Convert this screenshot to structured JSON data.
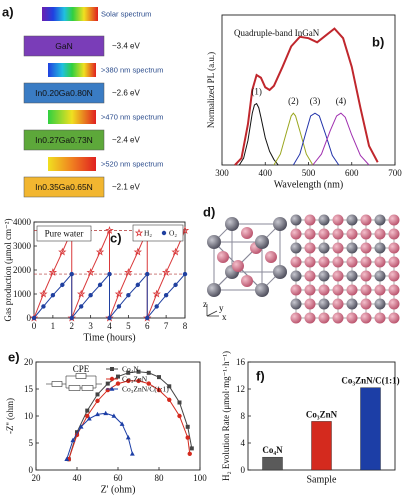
{
  "schematic": {
    "panel_label": "a)",
    "spectra": [
      "Solar spectrum",
      ">380 nm spectrum",
      ">470 nm spectrum",
      ">520 nm spectrum"
    ],
    "layers": [
      {
        "name": "GaN",
        "energy": "~3.4 eV",
        "color": "#7a3db8",
        "text_color": "#ffffff"
      },
      {
        "name": "In0.20Ga0.80N",
        "energy": "~2.6 eV",
        "color": "#3a7cc4",
        "text_color": "#111111"
      },
      {
        "name": "In0.27Ga0.73N",
        "energy": "~2.4 eV",
        "color": "#5da83a",
        "text_color": "#111111"
      },
      {
        "name": "In0.35Ga0.65N",
        "energy": "~2.1 eV",
        "color": "#f2b630",
        "text_color": "#111111"
      }
    ]
  },
  "structure": {
    "panel_label": "d)",
    "axes": [
      "z",
      "y",
      "x"
    ]
  },
  "chart_data": [
    {
      "type": "line",
      "panel_label": "b)",
      "annotation": "Quadruple-band InGaN",
      "annotation_color": "#c0272d",
      "x_label": "Wavelength (nm)",
      "y_label": "Normalized PL (a.u.)",
      "xlim": [
        300,
        700
      ],
      "xticks": [
        300,
        400,
        500,
        600,
        700
      ],
      "ylim": [
        0,
        1.1
      ],
      "series": [
        {
          "color": "#c0272d",
          "line_width": 2,
          "x": [
            330,
            345,
            360,
            370,
            380,
            390,
            400,
            410,
            420,
            440,
            460,
            480,
            500,
            520,
            540,
            560,
            580,
            600,
            620,
            640,
            660
          ],
          "values": [
            0,
            0.05,
            0.3,
            0.55,
            0.66,
            0.64,
            0.57,
            0.55,
            0.58,
            0.72,
            0.87,
            0.94,
            0.93,
            0.9,
            0.95,
            1.0,
            0.93,
            0.72,
            0.42,
            0.14,
            0.02
          ]
        },
        {
          "name": "(1)",
          "color": "#111111",
          "x": [
            340,
            350,
            360,
            370,
            375,
            380,
            385,
            390,
            400,
            410,
            420,
            430
          ],
          "values": [
            0,
            0.05,
            0.18,
            0.38,
            0.44,
            0.45,
            0.42,
            0.35,
            0.2,
            0.1,
            0.04,
            0
          ]
        },
        {
          "name": "(2)",
          "color": "#9aa61e",
          "x": [
            420,
            435,
            450,
            460,
            465,
            470,
            480,
            495,
            510
          ],
          "values": [
            0,
            0.08,
            0.25,
            0.36,
            0.38,
            0.36,
            0.25,
            0.08,
            0
          ]
        },
        {
          "name": "(3)",
          "color": "#2233aa",
          "x": [
            465,
            480,
            495,
            505,
            515,
            525,
            540,
            555,
            570
          ],
          "values": [
            0,
            0.08,
            0.25,
            0.36,
            0.38,
            0.36,
            0.22,
            0.07,
            0
          ]
        },
        {
          "name": "(4)",
          "color": "#a030b0",
          "x": [
            510,
            530,
            550,
            565,
            575,
            585,
            600,
            620,
            640
          ],
          "values": [
            0,
            0.08,
            0.25,
            0.36,
            0.38,
            0.35,
            0.22,
            0.07,
            0
          ]
        }
      ]
    },
    {
      "type": "line",
      "panel_label": "c)",
      "annotation": "Pure water",
      "x_label": "Time (hours)",
      "y_label": "Gas production (μmol cm⁻²)",
      "xlim": [
        0,
        8
      ],
      "xticks": [
        0,
        1,
        2,
        3,
        4,
        5,
        6,
        7,
        8
      ],
      "ylim": [
        0,
        4000
      ],
      "yticks": [
        0,
        1000,
        2000,
        3000,
        4000
      ],
      "reference_lines": [
        3650,
        1830
      ],
      "legend": "upper right",
      "series": [
        {
          "name": "H₂",
          "color": "#d9383a",
          "marker": "star",
          "x": [
            0,
            0.5,
            1,
            1.5,
            2,
            2,
            2.5,
            3,
            3.5,
            4,
            4,
            4.5,
            5,
            5.5,
            6,
            6,
            6.5,
            7,
            7.5,
            8
          ],
          "values": [
            0,
            1000,
            1900,
            2750,
            3650,
            0,
            1000,
            1900,
            2750,
            3650,
            0,
            1000,
            1900,
            2750,
            3650,
            0,
            1000,
            1900,
            2750,
            3650
          ]
        },
        {
          "name": "O₂",
          "color": "#2040a0",
          "marker": "circle",
          "x": [
            0,
            0.5,
            1,
            1.5,
            2,
            2,
            2.5,
            3,
            3.5,
            4,
            4,
            4.5,
            5,
            5.5,
            6,
            6,
            6.5,
            7,
            7.5,
            8
          ],
          "values": [
            0,
            480,
            950,
            1380,
            1830,
            0,
            480,
            950,
            1380,
            1830,
            0,
            480,
            950,
            1380,
            1830,
            0,
            480,
            950,
            1380,
            1830
          ]
        }
      ]
    },
    {
      "type": "line",
      "panel_label": "e)",
      "annotation": "CPE",
      "x_label": "Z' (ohm)",
      "y_label": "-Z'' (ohm)",
      "xlim": [
        20,
        100
      ],
      "xticks": [
        20,
        40,
        60,
        80,
        100
      ],
      "ylim": [
        0,
        20
      ],
      "yticks": [
        0,
        5,
        10,
        15,
        20
      ],
      "legend": "upper right",
      "series": [
        {
          "name": "Co₄N",
          "color": "#444444",
          "marker": "square",
          "x": [
            36,
            40,
            45,
            50,
            55,
            60,
            65,
            70,
            75,
            80,
            85,
            90,
            94,
            96
          ],
          "values": [
            2,
            7,
            11,
            14,
            16,
            17.3,
            18,
            18.2,
            18,
            17.2,
            15.5,
            12.5,
            8,
            4
          ]
        },
        {
          "name": "Co₃ZnN",
          "color": "#d42a1e",
          "marker": "circle",
          "x": [
            36,
            40,
            45,
            50,
            55,
            60,
            65,
            70,
            75,
            80,
            85,
            90,
            94,
            95
          ],
          "values": [
            2,
            6.5,
            10,
            12.8,
            14.8,
            16,
            16.5,
            16.5,
            16,
            14.8,
            13,
            10,
            6,
            3
          ]
        },
        {
          "name": "Co₃ZnN/C(1:1)",
          "color": "#1c3ea6",
          "marker": "triangle",
          "x": [
            35,
            38,
            42,
            46,
            50,
            54,
            58,
            62,
            65,
            67
          ],
          "values": [
            2,
            5.5,
            8,
            9.5,
            10.3,
            10.5,
            10,
            8.5,
            6,
            3
          ]
        }
      ]
    },
    {
      "type": "bar",
      "panel_label": "f)",
      "x_label": "Sample",
      "y_label": "H₂ Evolution Rate (μmol·mg⁻¹·h⁻¹)",
      "ylim": [
        0,
        16
      ],
      "yticks": [
        0,
        4,
        8,
        12,
        16
      ],
      "categories": [
        "Co₄N",
        "Co₃ZnN",
        "Co₃ZnN/C(1:1)"
      ],
      "values": [
        1.9,
        7.2,
        12.2
      ],
      "colors": [
        "#5a5a5a",
        "#d42a1e",
        "#1c3ea6"
      ]
    }
  ]
}
